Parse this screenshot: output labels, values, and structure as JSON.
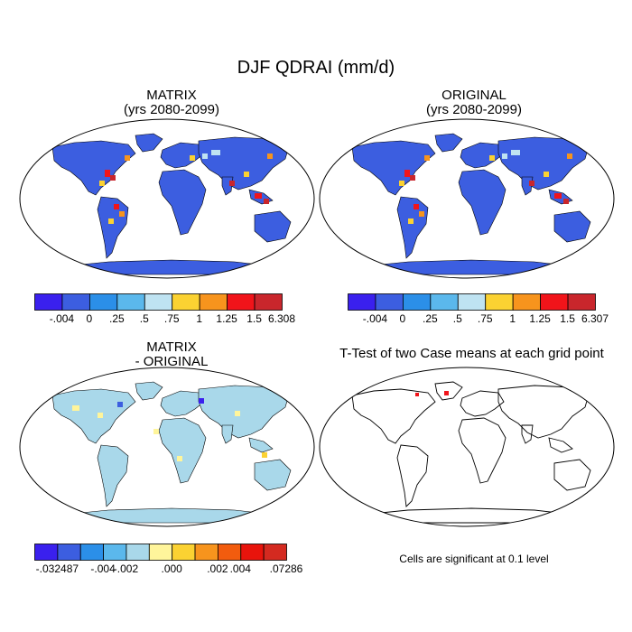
{
  "title": "DJF QDRAI (mm/d)",
  "panels": [
    {
      "id": "matrix",
      "title_line1": "MATRIX",
      "title_line2": "(yrs 2080-2099)"
    },
    {
      "id": "original",
      "title_line1": "ORIGINAL",
      "title_line2": "(yrs 2080-2099)"
    },
    {
      "id": "difference",
      "title_line1": "MATRIX",
      "title_line2": "- ORIGINAL"
    },
    {
      "id": "ttest",
      "title_line1": "T-Test of two Case means at each grid point",
      "title_line2": ""
    }
  ],
  "colorbars": {
    "matrix": {
      "colors": [
        "#3a20ee",
        "#3c5ee0",
        "#2b8fe8",
        "#5bb8ec",
        "#bfe3f2",
        "#fbd232",
        "#f7941d",
        "#f1141a",
        "#c9262c"
      ],
      "labels": [
        "-.004",
        "0",
        ".25",
        ".5",
        ".75",
        "1",
        "1.25",
        "1.5",
        "6.308"
      ]
    },
    "original": {
      "colors": [
        "#3a20ee",
        "#3c5ee0",
        "#2b8fe8",
        "#5bb8ec",
        "#bfe3f2",
        "#fbd232",
        "#f7941d",
        "#f1141a",
        "#c9262c"
      ],
      "labels": [
        "-.004",
        "0",
        ".25",
        ".5",
        ".75",
        "1",
        "1.25",
        "1.5",
        "6.307"
      ]
    },
    "difference": {
      "colors": [
        "#3a20ee",
        "#3c5ee0",
        "#2b8fe8",
        "#5bb8ec",
        "#a9d8ea",
        "#fff59b",
        "#fbd232",
        "#f7941d",
        "#f25c0e",
        "#e8140c",
        "#d42a20"
      ],
      "labels": [
        "-.032487",
        "-.004",
        "-.002",
        ".000",
        ".002",
        ".004",
        ".07286"
      ]
    }
  },
  "ttest_note": "Cells are significant at 0.1 level"
}
